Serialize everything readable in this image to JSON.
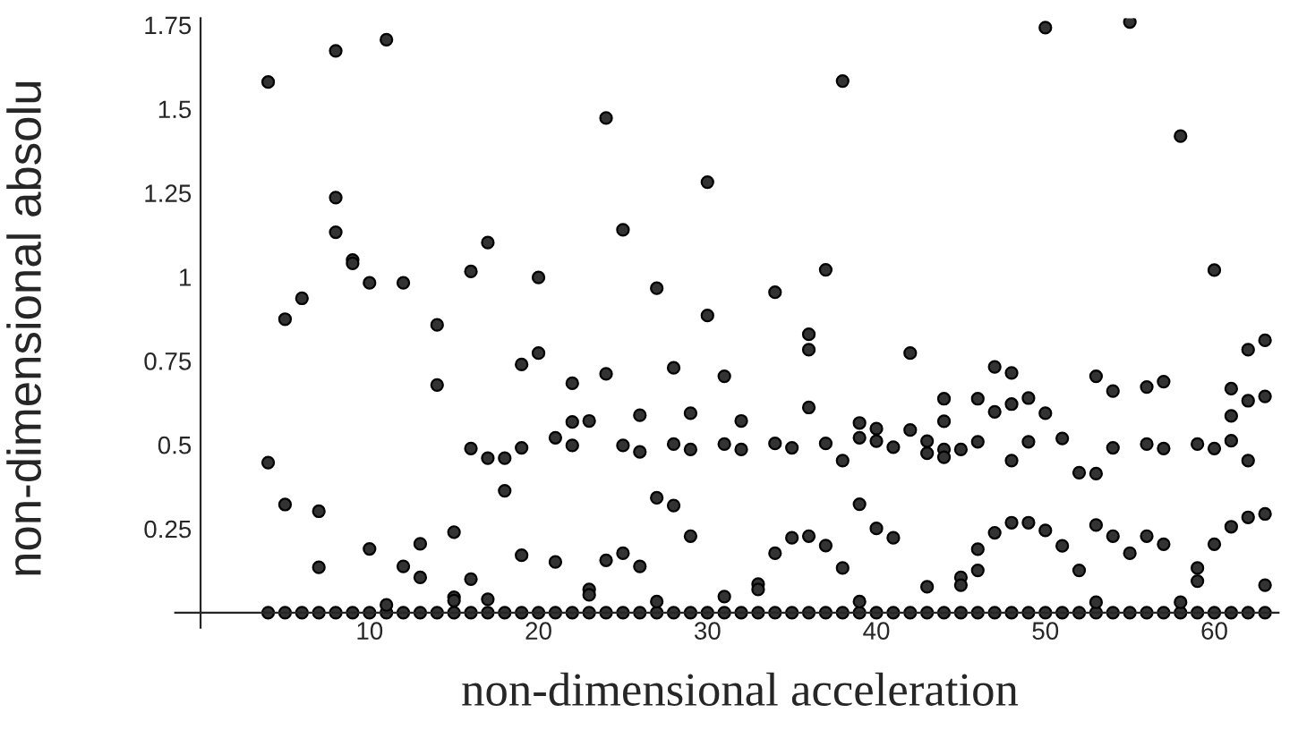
{
  "chart_data": {
    "type": "scatter",
    "xlabel": "non-dimensional acceleration",
    "ylabel": "non-dimensional absolu",
    "xlim": [
      -1.5,
      63.8
    ],
    "ylim": [
      -0.045,
      1.77
    ],
    "xticks": [
      10,
      20,
      30,
      40,
      50,
      60
    ],
    "yticks": [
      0.25,
      0.5,
      0.75,
      1,
      1.25,
      1.5,
      1.75
    ],
    "grid": false,
    "marker": "circle",
    "series": [
      {
        "color": "#333333",
        "x": [
          4,
          5,
          6,
          7,
          8,
          9,
          10,
          11,
          12,
          13,
          14,
          15,
          16,
          17,
          18,
          19,
          20,
          21,
          22,
          23,
          24,
          25,
          26,
          27,
          28,
          29,
          30,
          31,
          32,
          33,
          34,
          35,
          36,
          37,
          38,
          39,
          40,
          41,
          42,
          43,
          44,
          45,
          46,
          47,
          48,
          49,
          50,
          51,
          52,
          53,
          54,
          55,
          56,
          57,
          58,
          59,
          60,
          61,
          62,
          63,
          4,
          4,
          5,
          5,
          6,
          7,
          7,
          8,
          8,
          8,
          9,
          9,
          10,
          10,
          11,
          11,
          12,
          12,
          13,
          13,
          14,
          14,
          15,
          15,
          15,
          16,
          16,
          16,
          17,
          17,
          17,
          18,
          18,
          19,
          19,
          19,
          20,
          20,
          21,
          21,
          22,
          22,
          22,
          23,
          23,
          23,
          24,
          24,
          24,
          25,
          25,
          25,
          26,
          26,
          26,
          27,
          27,
          27,
          28,
          28,
          28,
          29,
          29,
          29,
          30,
          30,
          31,
          31,
          31,
          32,
          32,
          33,
          33,
          34,
          34,
          34,
          35,
          35,
          36,
          36,
          36,
          36,
          37,
          37,
          37,
          38,
          38,
          38,
          39,
          39,
          39,
          39,
          40,
          40,
          40,
          41,
          41,
          42,
          42,
          43,
          43,
          43,
          44,
          44,
          44,
          44,
          45,
          45,
          45,
          46,
          46,
          46,
          46,
          47,
          47,
          47,
          48,
          48,
          48,
          48,
          49,
          49,
          49,
          50,
          50,
          50,
          51,
          51,
          52,
          52,
          53,
          53,
          53,
          53,
          54,
          54,
          54,
          55,
          55,
          56,
          56,
          56,
          57,
          57,
          57,
          58,
          58,
          59,
          59,
          59,
          60,
          60,
          60,
          61,
          61,
          61,
          61,
          62,
          62,
          62,
          62,
          63,
          63,
          63,
          63
        ],
        "values": [
          0,
          0,
          0,
          0,
          0,
          0,
          0,
          0,
          0,
          0,
          0,
          0,
          0,
          0,
          0,
          0,
          0,
          0,
          0,
          0,
          0,
          0,
          0,
          0,
          0,
          0,
          0,
          0,
          0,
          0,
          0,
          0,
          0,
          0,
          0,
          0,
          0,
          0,
          0,
          0,
          0,
          0,
          0,
          0,
          0,
          0,
          0,
          0,
          0,
          0,
          0,
          0,
          0,
          0,
          0,
          0,
          0,
          0,
          0,
          0,
          1.58,
          0.447,
          0.874,
          0.322,
          0.936,
          0.302,
          0.135,
          1.673,
          1.236,
          1.133,
          1.05,
          1.04,
          0.982,
          0.19,
          1.706,
          0.023,
          0.982,
          0.138,
          0.205,
          0.105,
          0.857,
          0.678,
          0.24,
          0.046,
          0.036,
          1.016,
          0.489,
          0.1,
          1.102,
          0.46,
          0.04,
          0.46,
          0.363,
          0.739,
          0.491,
          0.171,
          0.998,
          0.773,
          0.521,
          0.151,
          0.683,
          0.568,
          0.498,
          0.571,
          0.069,
          0.053,
          1.473,
          0.711,
          0.156,
          1.14,
          0.498,
          0.177,
          0.588,
          0.479,
          0.138,
          0.966,
          0.342,
          0.033,
          0.729,
          0.502,
          0.319,
          0.594,
          0.486,
          0.228,
          1.282,
          0.885,
          0.704,
          0.502,
          0.048,
          0.571,
          0.486,
          0.085,
          0.069,
          0.954,
          0.504,
          0.177,
          0.491,
          0.223,
          0.829,
          0.783,
          0.611,
          0.228,
          1.021,
          0.504,
          0.2,
          1.583,
          0.453,
          0.133,
          0.565,
          0.521,
          0.323,
          0.033,
          0.548,
          0.511,
          0.251,
          0.493,
          0.223,
          0.773,
          0.544,
          0.511,
          0.475,
          0.077,
          0.637,
          0.57,
          0.486,
          0.463,
          0.486,
          0.105,
          0.082,
          0.637,
          0.509,
          0.189,
          0.126,
          0.732,
          0.598,
          0.238,
          0.714,
          0.621,
          0.453,
          0.268,
          0.639,
          0.509,
          0.268,
          1.742,
          0.594,
          0.245,
          0.519,
          0.199,
          0.417,
          0.126,
          0.704,
          0.414,
          0.261,
          0.031,
          0.66,
          0.491,
          0.228,
          1.759,
          0.177,
          0.672,
          0.502,
          0.228,
          0.688,
          0.489,
          0.204,
          1.419,
          0.031,
          0.502,
          0.133,
          0.094,
          1.02,
          0.489,
          0.204,
          0.667,
          0.586,
          0.512,
          0.256,
          0.783,
          0.631,
          0.453,
          0.284,
          0.811,
          0.644,
          0.294,
          0.082
        ]
      }
    ]
  }
}
